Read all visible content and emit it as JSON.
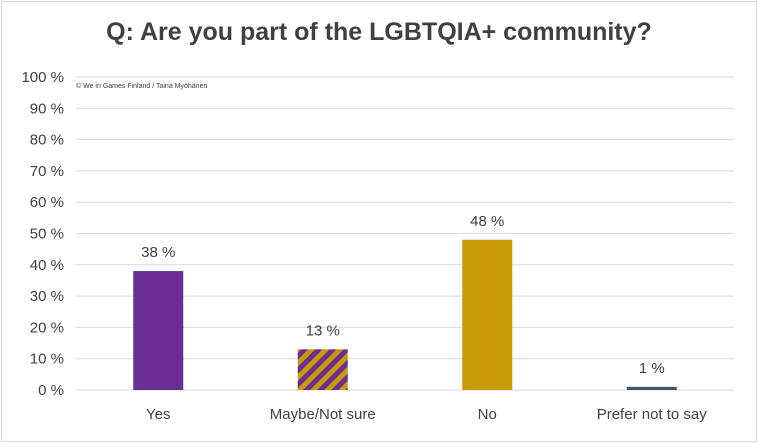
{
  "chart_data": {
    "type": "bar",
    "title": "Q: Are you part of the LGBTQIA+ community?",
    "credit": "© We in Games Finland / Taina Myöhänen",
    "categories": [
      "Yes",
      "Maybe/Not sure",
      "No",
      "Prefer not to say"
    ],
    "values": [
      38,
      13,
      48,
      1
    ],
    "value_labels": [
      "38 %",
      "13 %",
      "48 %",
      "1 %"
    ],
    "y_tick_labels": [
      "0 %",
      "10 %",
      "20 %",
      "30 %",
      "40 %",
      "50 %",
      "60 %",
      "70 %",
      "80 %",
      "90 %",
      "100 %"
    ],
    "ylim": [
      0,
      100
    ],
    "grid": true,
    "legend": "none",
    "colors": {
      "yes": "#6a2d91",
      "maybe_stripe_a": "#6a2d91",
      "maybe_stripe_b": "#c89a06",
      "no": "#c89a06",
      "prefer_not": "#44546a",
      "gridline": "#d9d9d9"
    }
  }
}
